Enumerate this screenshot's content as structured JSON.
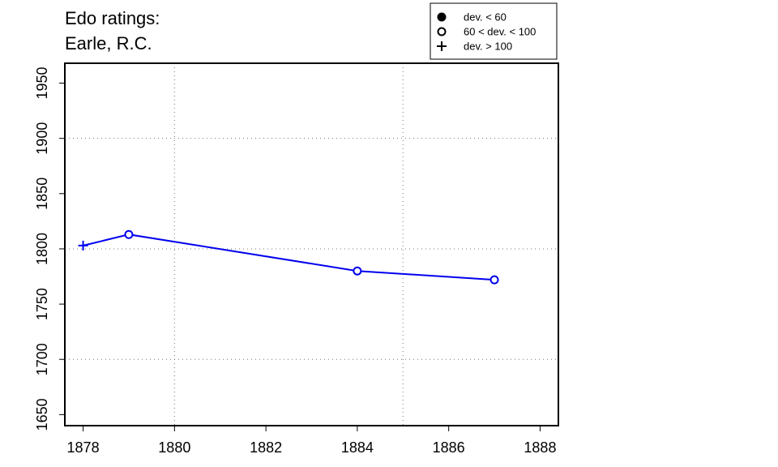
{
  "chart_data": {
    "type": "line",
    "title_lines": [
      "Edo ratings:",
      "Earle, R.C."
    ],
    "xlabel": "",
    "ylabel": "",
    "xlim": [
      1877.6,
      1888.4
    ],
    "ylim": [
      1640,
      1968
    ],
    "x_ticks": [
      1878,
      1880,
      1882,
      1884,
      1886,
      1888
    ],
    "y_ticks": [
      1650,
      1700,
      1750,
      1800,
      1850,
      1900,
      1950
    ],
    "x_grid": [
      1880,
      1885
    ],
    "y_grid": [
      1700,
      1800,
      1900
    ],
    "grid": "dotted",
    "line_color": "#0000ee",
    "series": [
      {
        "points": [
          {
            "x": 1878,
            "y": 1803,
            "marker": "plus"
          },
          {
            "x": 1879,
            "y": 1813,
            "marker": "open-circle"
          },
          {
            "x": 1884,
            "y": 1780,
            "marker": "open-circle"
          },
          {
            "x": 1887,
            "y": 1772,
            "marker": "open-circle"
          }
        ]
      }
    ],
    "legend": {
      "placement": "top-right",
      "items": [
        {
          "marker": "filled-circle",
          "label": "dev. < 60"
        },
        {
          "marker": "open-circle",
          "label": "60 < dev. < 100"
        },
        {
          "marker": "plus",
          "label": "dev. > 100"
        }
      ]
    }
  }
}
